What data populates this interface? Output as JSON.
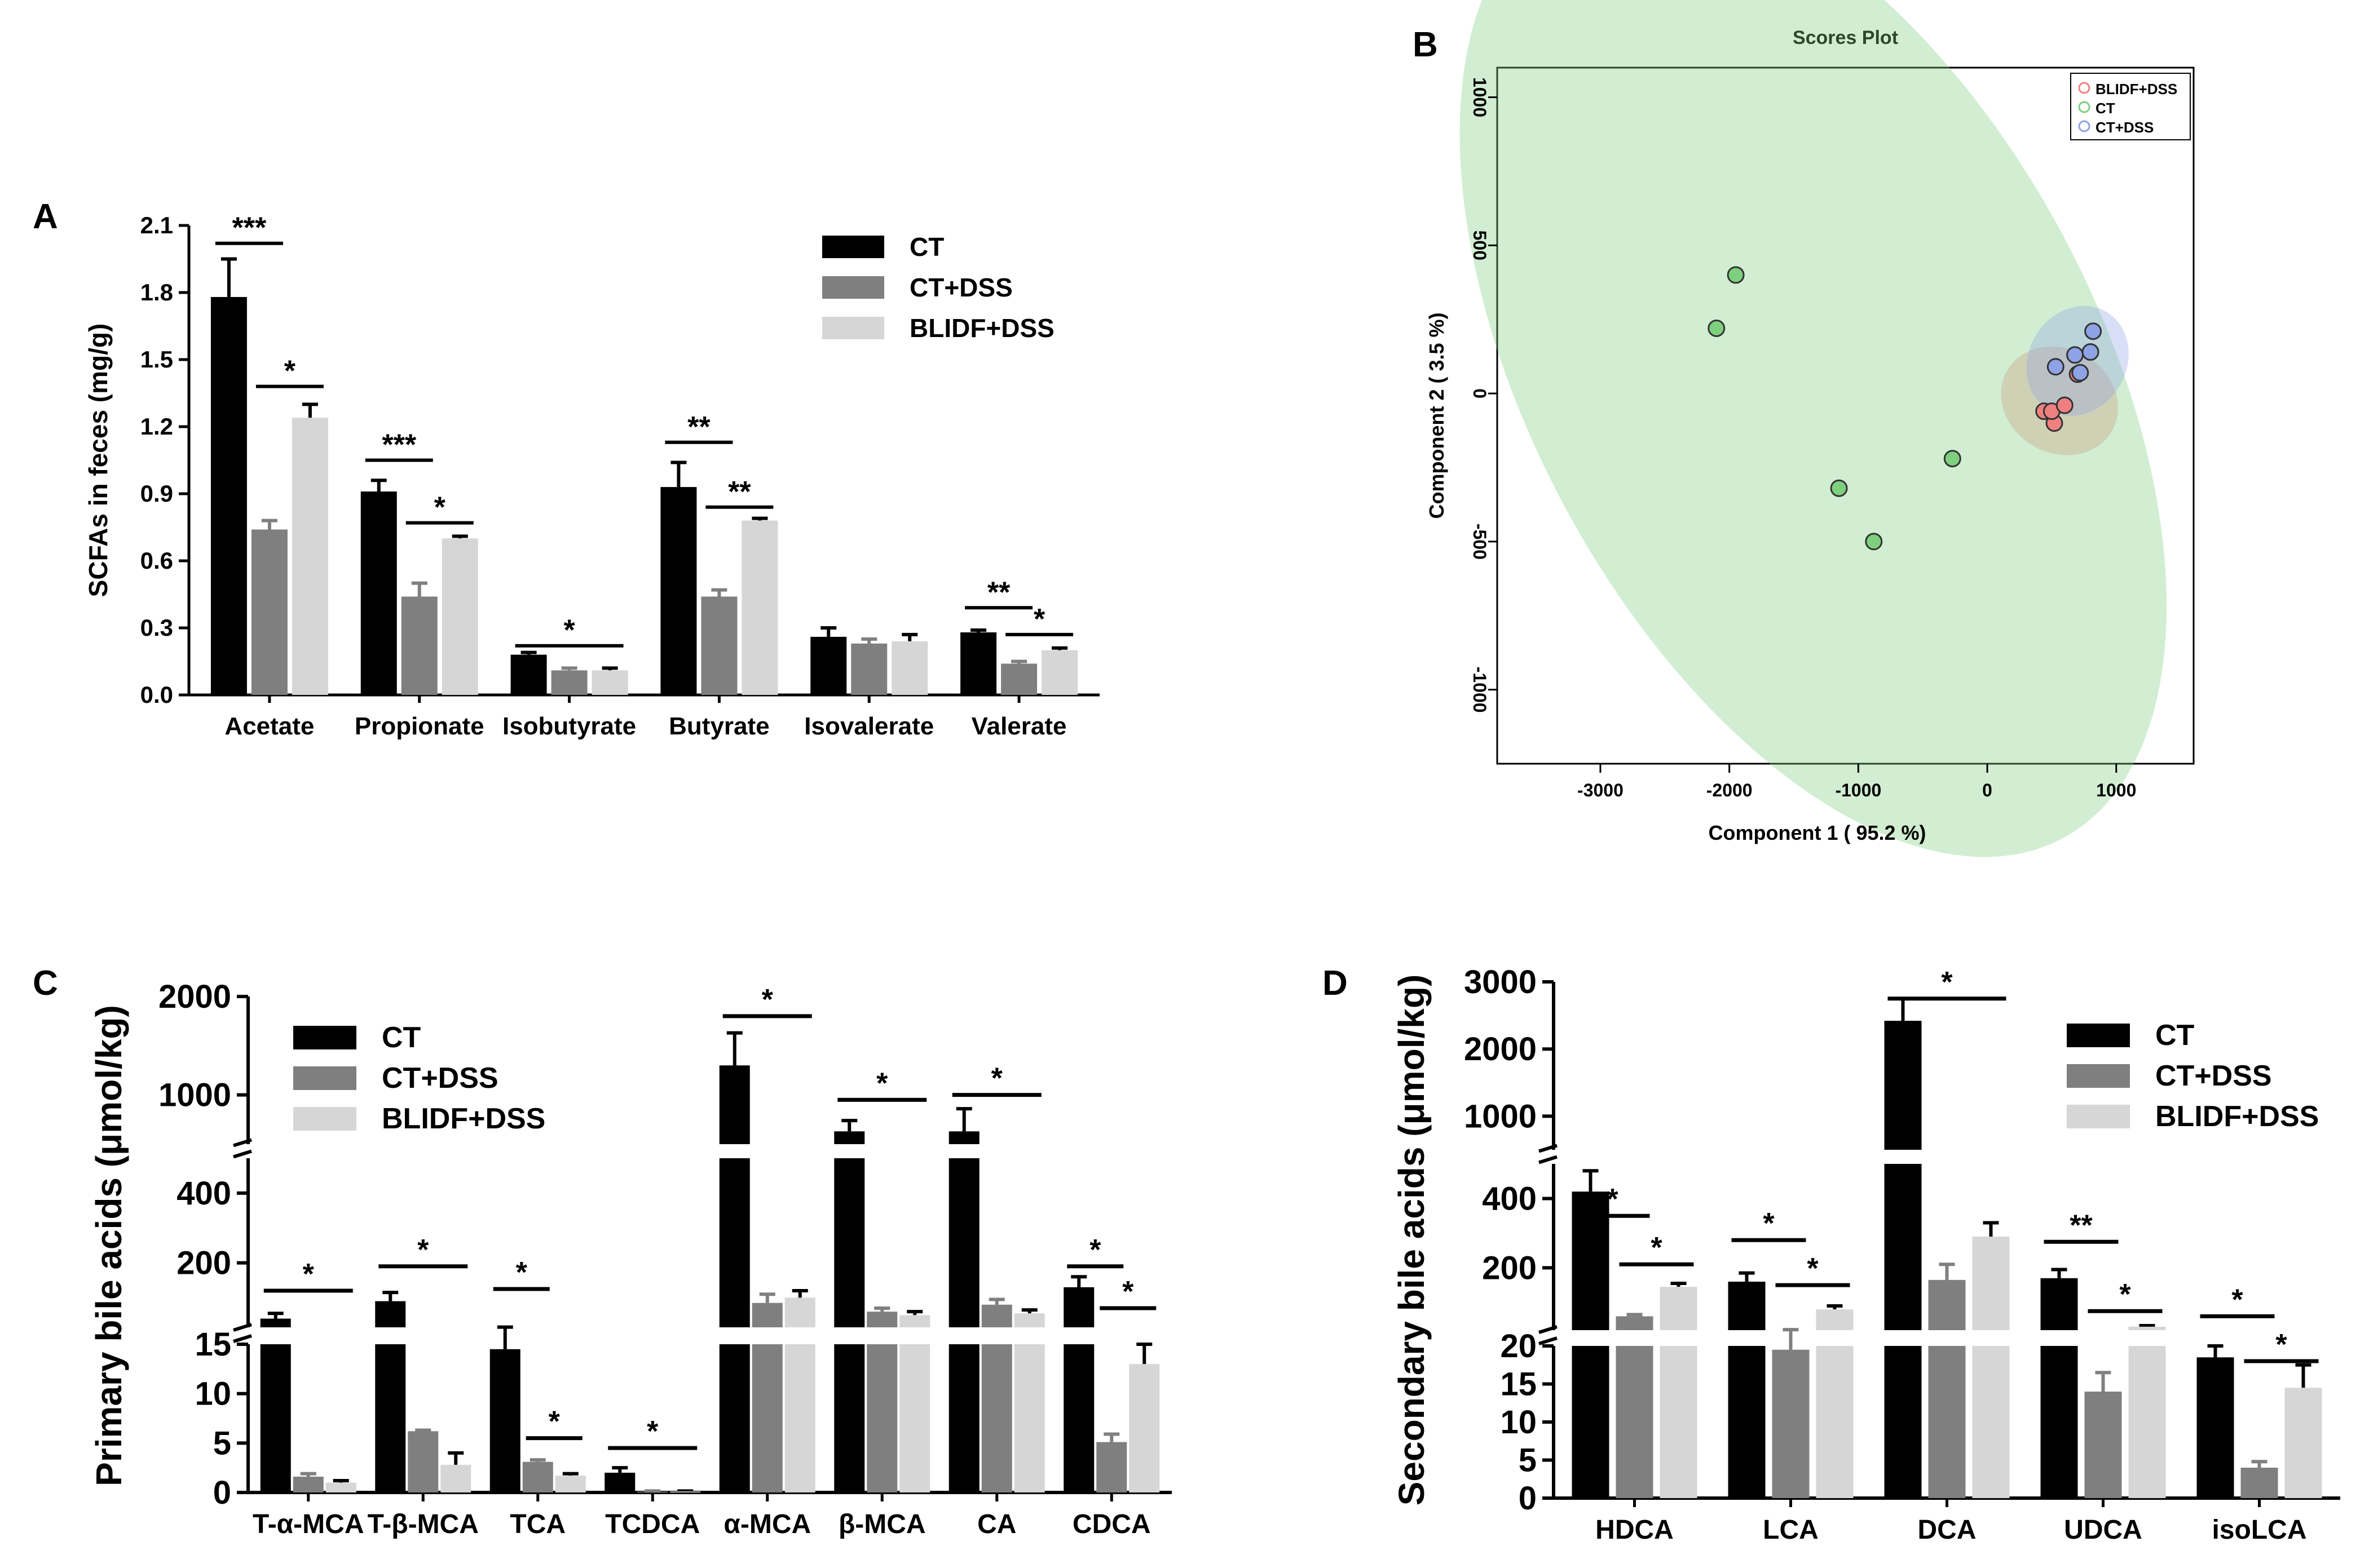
{
  "figure": {
    "panel_labels": [
      "A",
      "B",
      "C",
      "D"
    ]
  },
  "colors": {
    "ct": "#000000",
    "ct_dss": "#7f7f7f",
    "blidf_dss": "#d6d6d6",
    "pca_red": "#f08080",
    "pca_green": "#7ecf7e",
    "pca_blue": "#8ea2e6"
  },
  "chart_data": [
    {
      "id": "A",
      "type": "bar",
      "ylabel": "SCFAs in feces (mg/g)",
      "yticks": [
        "0.0",
        "0.3",
        "0.6",
        "0.9",
        "1.2",
        "1.5",
        "1.8",
        "2.1"
      ],
      "ylim": [
        0,
        2.1
      ],
      "legend": [
        "CT",
        "CT+DSS",
        "BLIDF+DSS"
      ],
      "legend_position": "top-right",
      "categories": [
        "Acetate",
        "Propionate",
        "Isobutyrate",
        "Butyrate",
        "Isovalerate",
        "Valerate"
      ],
      "series": [
        {
          "name": "CT",
          "values": [
            1.78,
            0.91,
            0.18,
            0.93,
            0.26,
            0.28
          ],
          "errors": [
            0.17,
            0.05,
            0.01,
            0.11,
            0.04,
            0.01
          ]
        },
        {
          "name": "CT+DSS",
          "values": [
            0.74,
            0.44,
            0.11,
            0.44,
            0.23,
            0.14
          ],
          "errors": [
            0.04,
            0.06,
            0.01,
            0.03,
            0.02,
            0.01
          ]
        },
        {
          "name": "BLIDF+DSS",
          "values": [
            1.24,
            0.7,
            0.11,
            0.78,
            0.24,
            0.2
          ],
          "errors": [
            0.06,
            0.01,
            0.01,
            0.01,
            0.03,
            0.01
          ]
        }
      ],
      "significance": [
        {
          "label": "***",
          "cat": 0,
          "from": 0,
          "to": 1,
          "y": 2.02
        },
        {
          "label": "*",
          "cat": 0,
          "from": 1,
          "to": 2,
          "y": 1.38
        },
        {
          "label": "***",
          "cat": 1,
          "from": 0,
          "to": 1,
          "y": 1.05
        },
        {
          "label": "*",
          "cat": 1,
          "from": 1,
          "to": 2,
          "y": 0.77
        },
        {
          "label": "*",
          "cat": 2,
          "from": 0,
          "to": 2,
          "y": 0.22
        },
        {
          "label": "**",
          "cat": 3,
          "from": 0,
          "to": 1,
          "y": 1.13
        },
        {
          "label": "**",
          "cat": 3,
          "from": 1,
          "to": 2,
          "y": 0.84
        },
        {
          "label": "**",
          "cat": 5,
          "from": 0,
          "to": 1,
          "y": 0.39
        },
        {
          "label": "*",
          "cat": 5,
          "from": 1,
          "to": 2,
          "y": 0.27
        }
      ]
    },
    {
      "id": "B",
      "type": "scatter",
      "title": "Scores Plot",
      "xlabel": "Component 1 ( 95.2 %)",
      "ylabel": "Component 2 ( 3.5 %)",
      "xlim": [
        -3800,
        1600
      ],
      "ylim": [
        -1250,
        1100
      ],
      "xticks": [
        "-3000",
        "-2000",
        "-1000",
        "0",
        "1000"
      ],
      "yticks": [
        "-1000",
        "-500",
        "0",
        "500",
        "1000"
      ],
      "legend": [
        "BLIDF+DSS",
        "CT",
        "CT+DSS"
      ],
      "legend_position": "top-right",
      "groups": [
        {
          "name": "BLIDF+DSS",
          "color_key": "pca_red",
          "points": [
            [
              440,
              -60
            ],
            [
              520,
              -100
            ],
            [
              500,
              -60
            ],
            [
              600,
              -40
            ],
            [
              700,
              65
            ]
          ],
          "ellipse": {
            "cx": 560,
            "cy": -25,
            "rx": 470,
            "ry": 55,
            "angle": 30
          }
        },
        {
          "name": "CT",
          "color_key": "pca_green",
          "points": [
            [
              -1950,
              400
            ],
            [
              -2100,
              220
            ],
            [
              -1150,
              -320
            ],
            [
              -880,
              -500
            ],
            [
              -270,
              -220
            ]
          ],
          "ellipse": {
            "cx": -1350,
            "cy": 80,
            "rx": 2200,
            "ry": 560,
            "angle": -28
          }
        },
        {
          "name": "CT+DSS",
          "color_key": "pca_blue",
          "points": [
            [
              530,
              90
            ],
            [
              680,
              130
            ],
            [
              800,
              140
            ],
            [
              820,
              210
            ],
            [
              720,
              70
            ]
          ],
          "ellipse": {
            "cx": 700,
            "cy": 110,
            "rx": 380,
            "ry": 60,
            "angle": 30
          }
        }
      ]
    },
    {
      "id": "C",
      "type": "bar",
      "ylabel": "Primary bile acids (μmol/kg)",
      "legend": [
        "CT",
        "CT+DSS",
        "BLIDF+DSS"
      ],
      "legend_position": "top-left",
      "axis_segments": [
        {
          "range": [
            0,
            15
          ],
          "ticks": [
            "0",
            "5",
            "10",
            "15"
          ]
        },
        {
          "range": [
            15,
            500
          ],
          "ticks": [
            "200",
            "400"
          ]
        },
        {
          "range": [
            500,
            2000
          ],
          "ticks": [
            "1000",
            "2000"
          ]
        }
      ],
      "categories": [
        "T-α-MCA",
        "T-β-MCA",
        "TCA",
        "TCDCA",
        "α-MCA",
        "β-MCA",
        "CA",
        "CDCA"
      ],
      "series": [
        {
          "name": "CT",
          "values": [
            40,
            90,
            14.5,
            2.0,
            1300,
            630,
            630,
            130
          ],
          "errors": [
            15,
            25,
            1.2,
            0.5,
            330,
            110,
            230,
            30
          ]
        },
        {
          "name": "CT+DSS",
          "values": [
            1.6,
            6.2,
            3.1,
            0.1,
            85,
            60,
            80,
            5.1
          ],
          "errors": [
            0.3,
            0.1,
            0.2,
            0.05,
            25,
            10,
            15,
            0.8
          ]
        },
        {
          "name": "BLIDF+DSS",
          "values": [
            1.0,
            2.8,
            1.7,
            0.1,
            100,
            50,
            55,
            13
          ],
          "errors": [
            0.2,
            1.2,
            0.2,
            0.05,
            20,
            10,
            10,
            2
          ]
        }
      ],
      "significance": [
        {
          "label": "*",
          "cat": 0,
          "from": 0,
          "to": 2,
          "y": 120
        },
        {
          "label": "*",
          "cat": 1,
          "from": 0,
          "to": 2,
          "y": 190
        },
        {
          "label": "*",
          "cat": 2,
          "from": 0,
          "to": 1,
          "y": 125
        },
        {
          "label": "*",
          "cat": 2,
          "from": 1,
          "to": 2,
          "y": 5.5
        },
        {
          "label": "*",
          "cat": 3,
          "from": 0,
          "to": 2,
          "y": 4.5
        },
        {
          "label": "*",
          "cat": 4,
          "from": 0,
          "to": 2,
          "y": 1800
        },
        {
          "label": "*",
          "cat": 5,
          "from": 0,
          "to": 2,
          "y": 950
        },
        {
          "label": "*",
          "cat": 6,
          "from": 0,
          "to": 2,
          "y": 1000
        },
        {
          "label": "*",
          "cat": 7,
          "from": 0,
          "to": 1,
          "y": 190
        },
        {
          "label": "*",
          "cat": 7,
          "from": 1,
          "to": 2,
          "y": 70
        }
      ]
    },
    {
      "id": "D",
      "type": "bar",
      "ylabel": "Secondary bile acids (μmol/kg)",
      "legend": [
        "CT",
        "CT+DSS",
        "BLIDF+DSS"
      ],
      "legend_position": "top-right",
      "axis_segments": [
        {
          "range": [
            0,
            20
          ],
          "ticks": [
            "0",
            "5",
            "10",
            "15",
            "20"
          ]
        },
        {
          "range": [
            20,
            500
          ],
          "ticks": [
            "200",
            "400"
          ]
        },
        {
          "range": [
            500,
            3000
          ],
          "ticks": [
            "1000",
            "2000",
            "3000"
          ]
        }
      ],
      "categories": [
        "HDCA",
        "LCA",
        "DCA",
        "UDCA",
        "isoLCA"
      ],
      "series": [
        {
          "name": "CT",
          "values": [
            420,
            160,
            2420,
            170,
            18.5
          ],
          "errors": [
            60,
            25,
            330,
            25,
            1.5
          ]
        },
        {
          "name": "CT+DSS",
          "values": [
            60,
            19.5,
            165,
            14,
            4.0
          ],
          "errors": [
            5,
            2,
            45,
            2.5,
            0.8
          ]
        },
        {
          "name": "BLIDF+DSS",
          "values": [
            145,
            80,
            290,
            30,
            14.5
          ],
          "errors": [
            10,
            10,
            40,
            3,
            3
          ]
        }
      ],
      "significance": [
        {
          "label": "*",
          "cat": 0,
          "from": 0,
          "to": 1,
          "y": 350
        },
        {
          "label": "*",
          "cat": 0,
          "from": 1,
          "to": 2,
          "y": 210
        },
        {
          "label": "*",
          "cat": 1,
          "from": 0,
          "to": 1,
          "y": 280
        },
        {
          "label": "*",
          "cat": 1,
          "from": 1,
          "to": 2,
          "y": 150
        },
        {
          "label": "*",
          "cat": 2,
          "from": 0,
          "to": 2,
          "y": 2750
        },
        {
          "label": "**",
          "cat": 3,
          "from": 0,
          "to": 1,
          "y": 275
        },
        {
          "label": "*",
          "cat": 3,
          "from": 1,
          "to": 2,
          "y": 75
        },
        {
          "label": "*",
          "cat": 4,
          "from": 0,
          "to": 1,
          "y": 60
        },
        {
          "label": "*",
          "cat": 4,
          "from": 1,
          "to": 2,
          "y": 18
        }
      ]
    }
  ]
}
